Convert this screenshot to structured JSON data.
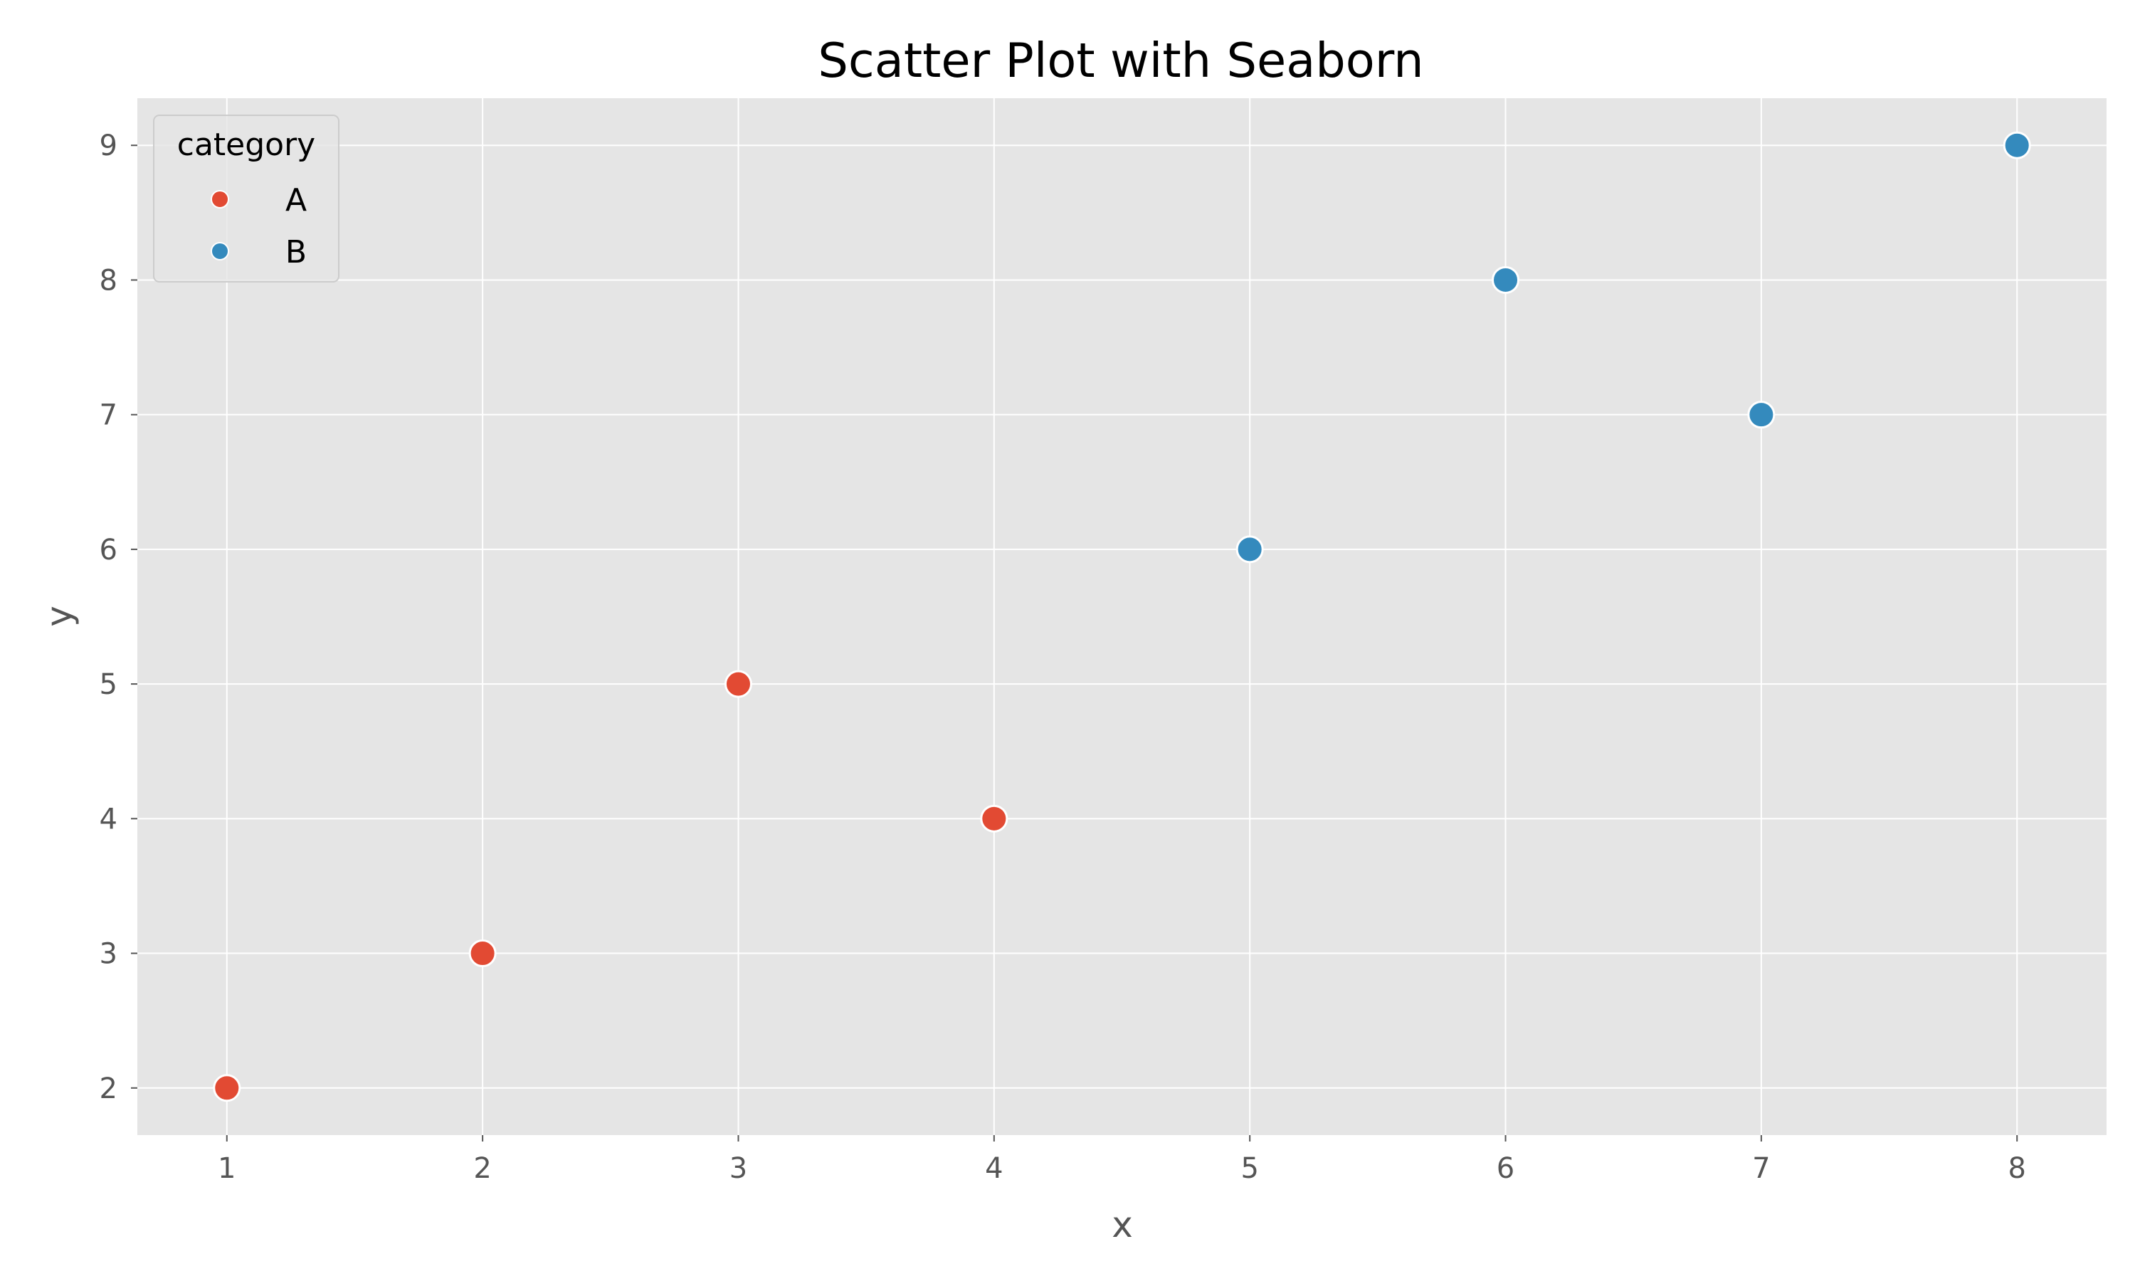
{
  "chart_data": {
    "type": "scatter",
    "title": "Scatter Plot with Seaborn",
    "xlabel": "x",
    "ylabel": "y",
    "xlim": [
      0.65,
      8.35
    ],
    "ylim": [
      1.65,
      9.35
    ],
    "xticks": [
      1,
      2,
      3,
      4,
      5,
      6,
      7,
      8
    ],
    "yticks": [
      2,
      3,
      4,
      5,
      6,
      7,
      8,
      9
    ],
    "grid": true,
    "legend": {
      "title": "category",
      "placement": "top-left"
    },
    "series": [
      {
        "name": "A",
        "color": "#E24A33",
        "points": [
          {
            "x": 1,
            "y": 2
          },
          {
            "x": 2,
            "y": 3
          },
          {
            "x": 3,
            "y": 5
          },
          {
            "x": 4,
            "y": 4
          }
        ]
      },
      {
        "name": "B",
        "color": "#348ABD",
        "points": [
          {
            "x": 5,
            "y": 6
          },
          {
            "x": 6,
            "y": 8
          },
          {
            "x": 7,
            "y": 7
          },
          {
            "x": 8,
            "y": 9
          }
        ]
      }
    ],
    "colors": {
      "plot_background": "#E5E5E5",
      "grid": "#FFFFFF",
      "marker_edge": "#FFFFFF"
    }
  }
}
